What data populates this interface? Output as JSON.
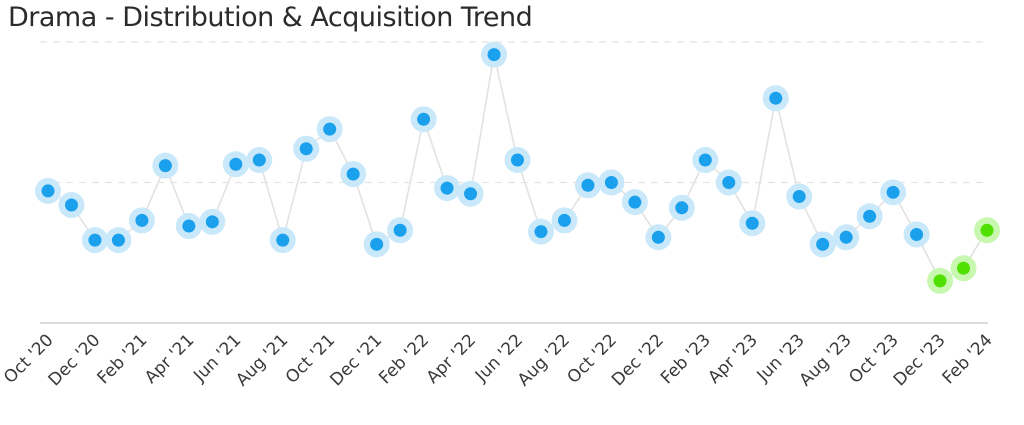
{
  "title": "Drama - Distribution & Acquisition Trend",
  "colors": {
    "series": "#1aa0ec",
    "series_halo": "#c9e8fa",
    "highlight": "#4fe000",
    "highlight_halo": "#c8f7b0",
    "line": "#e2e2e2",
    "grid": "#e4e4e4",
    "axis": "#d0d0d0"
  },
  "chart_data": {
    "type": "line",
    "title": "Drama - Distribution & Acquisition Trend",
    "xlabel": "",
    "ylabel": "",
    "x_tick_labels": [
      "Oct '20",
      "Dec '20",
      "Feb '21",
      "Apr '21",
      "Jun '21",
      "Aug '21",
      "Oct '21",
      "Dec '21",
      "Feb '22",
      "Apr '22",
      "Jun '22",
      "Aug '22",
      "Oct '22",
      "Dec '22",
      "Feb '23",
      "Apr '23",
      "Jun '23",
      "Aug '23",
      "Oct '23",
      "Dec '23",
      "Feb '24"
    ],
    "x": [
      "Oct '20",
      "Nov '20",
      "Dec '20",
      "Jan '21",
      "Feb '21",
      "Mar '21",
      "Apr '21",
      "May '21",
      "Jun '21",
      "Jul '21",
      "Aug '21",
      "Sep '21",
      "Oct '21",
      "Nov '21",
      "Dec '21",
      "Jan '22",
      "Feb '22",
      "Mar '22",
      "Apr '22",
      "May '22",
      "Jun '22",
      "Jul '22",
      "Aug '22",
      "Sep '22",
      "Oct '22",
      "Nov '22",
      "Dec '22",
      "Jan '23",
      "Feb '23",
      "Mar '23",
      "Apr '23",
      "May '23",
      "Jun '23",
      "Jul '23",
      "Aug '23",
      "Sep '23",
      "Oct '23",
      "Nov '23",
      "Dec '23",
      "Jan '24",
      "Feb '24"
    ],
    "values": [
      0.94,
      0.84,
      0.59,
      0.59,
      0.73,
      1.12,
      0.69,
      0.72,
      1.13,
      1.16,
      0.59,
      1.24,
      1.38,
      1.06,
      0.56,
      0.66,
      1.45,
      0.96,
      0.92,
      1.91,
      1.16,
      0.65,
      0.73,
      0.98,
      1.0,
      0.86,
      0.61,
      0.82,
      1.16,
      1.0,
      0.71,
      1.6,
      0.9,
      0.56,
      0.61,
      0.76,
      0.93,
      0.63,
      0.3,
      0.39,
      0.66
    ],
    "highlight_from_index": 38,
    "ylim": [
      0,
      2
    ],
    "gridlines": [
      1,
      2
    ],
    "grid": true,
    "legend": "none"
  }
}
